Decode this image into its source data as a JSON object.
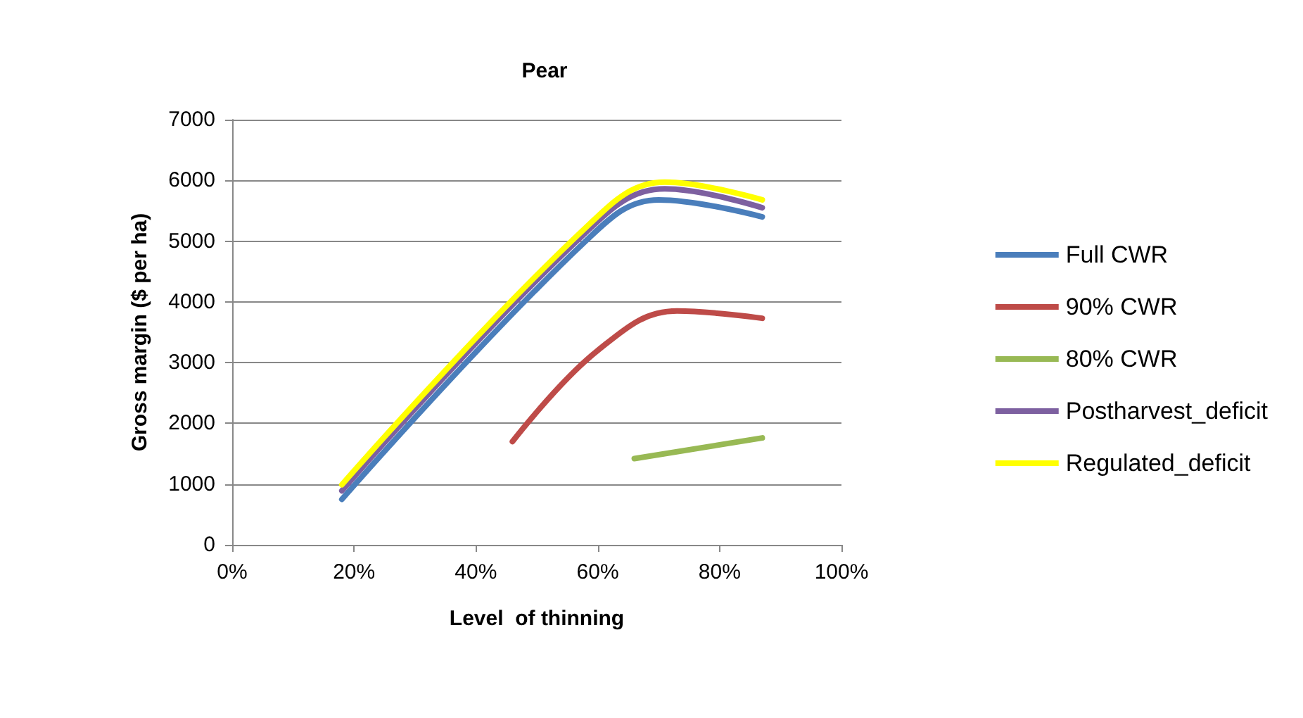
{
  "chart_data": {
    "type": "line",
    "title": "Pear",
    "xlabel": "Level  of thinning",
    "ylabel": "Gross margin ($ per ha)",
    "xlim": [
      0,
      1
    ],
    "xticks": [
      {
        "value": 0,
        "label": "0%"
      },
      {
        "value": 0.2,
        "label": "20%"
      },
      {
        "value": 0.4,
        "label": "40%"
      },
      {
        "value": 0.6,
        "label": "60%"
      },
      {
        "value": 0.8,
        "label": "80%"
      },
      {
        "value": 1,
        "label": "100%"
      }
    ],
    "ylim": [
      0,
      7000
    ],
    "yticks": [
      0,
      1000,
      2000,
      3000,
      4000,
      5000,
      6000,
      7000
    ],
    "grid": "y",
    "legend": "right",
    "marker": "none",
    "line_style": "solid",
    "series": [
      {
        "name": "Full CWR",
        "color": "#4a7ebb",
        "x": [
          0.18,
          0.58,
          0.7,
          0.87
        ],
        "values": [
          750,
          5000,
          5680,
          5400
        ]
      },
      {
        "name": "90% CWR",
        "color": "#be4b48",
        "x": [
          0.46,
          0.6,
          0.73,
          0.87
        ],
        "values": [
          1700,
          3200,
          3850,
          3730
        ]
      },
      {
        "name": "80% CWR",
        "color": "#98b954",
        "x": [
          0.66,
          0.87
        ],
        "values": [
          1420,
          1760
        ]
      },
      {
        "name": "Postharvest_deficit",
        "color": "#7d60a0",
        "x": [
          0.18,
          0.58,
          0.71,
          0.87
        ],
        "values": [
          890,
          5140,
          5860,
          5550
        ]
      },
      {
        "name": "Regulated_deficit",
        "color": "#ffff00",
        "x": [
          0.18,
          0.58,
          0.71,
          0.87
        ],
        "values": [
          990,
          5220,
          5970,
          5680
        ]
      }
    ]
  }
}
